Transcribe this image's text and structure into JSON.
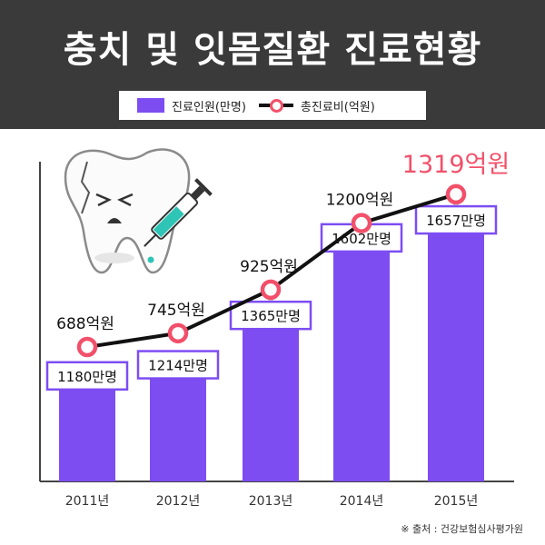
{
  "title": "충치 및 잇몸질환 진료현황",
  "legend": {
    "bar": "진료인원(만명)",
    "line": "총진료비(억원)"
  },
  "source": "※ 출처 : 건강보험심사평가원",
  "colors": {
    "bar": "#7d4df2",
    "line": "#111111",
    "marker": "#f2506a",
    "arrow": "#cfcfcf"
  },
  "chart_data": {
    "type": "bar",
    "categories": [
      "2011년",
      "2012년",
      "2013년",
      "2014년",
      "2015년"
    ],
    "series": [
      {
        "name": "진료인원(만명)",
        "type": "bar",
        "unit": "만명",
        "values": [
          1180,
          1214,
          1365,
          1602,
          1657
        ]
      },
      {
        "name": "총진료비(억원)",
        "type": "line",
        "unit": "억원",
        "values": [
          688,
          745,
          925,
          1200,
          1319
        ]
      }
    ],
    "bar_labels": [
      "1180만명",
      "1214만명",
      "1365만명",
      "1602만명",
      "1657만명"
    ],
    "line_labels": [
      "688억원",
      "745억원",
      "925억원",
      "1200억원",
      "1319억원"
    ],
    "highlight_index": 4,
    "grid": false
  }
}
